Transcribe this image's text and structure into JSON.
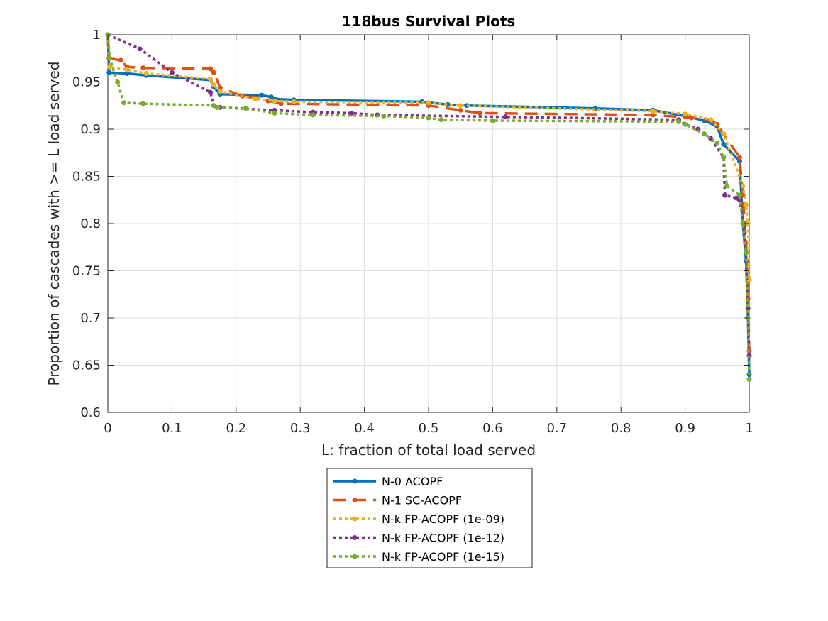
{
  "chart_data": {
    "type": "line",
    "title": "118bus Survival Plots",
    "xlabel": "L: fraction of total load served",
    "ylabel": "Proportion of cascades with >= L load served",
    "xlim": [
      0,
      1
    ],
    "ylim": [
      0.6,
      1
    ],
    "xticks": [
      "0",
      "0.1",
      "0.2",
      "0.3",
      "0.4",
      "0.5",
      "0.6",
      "0.7",
      "0.8",
      "0.9",
      "1"
    ],
    "yticks": [
      "0.6",
      "0.65",
      "0.7",
      "0.75",
      "0.8",
      "0.85",
      "0.9",
      "0.95",
      "1"
    ],
    "grid": true,
    "legend": "bottom-center (outside)",
    "series": [
      {
        "name": "N-0 ACOPF",
        "color": "#0072BD",
        "style": "solid",
        "x": [
          0,
          0.002,
          0.03,
          0.06,
          0.16,
          0.165,
          0.175,
          0.24,
          0.255,
          0.26,
          0.29,
          0.49,
          0.53,
          0.56,
          0.76,
          0.85,
          0.9,
          0.93,
          0.95,
          0.96,
          0.985,
          0.99,
          0.995,
          0.998,
          1.0
        ],
        "y": [
          1.0,
          0.96,
          0.959,
          0.957,
          0.952,
          0.945,
          0.937,
          0.936,
          0.934,
          0.932,
          0.931,
          0.929,
          0.926,
          0.925,
          0.922,
          0.92,
          0.914,
          0.909,
          0.903,
          0.884,
          0.866,
          0.8,
          0.76,
          0.7,
          0.64
        ]
      },
      {
        "name": "N-1 SC-ACOPF",
        "color": "#D95319",
        "style": "dashed",
        "x": [
          0,
          0.002,
          0.02,
          0.03,
          0.055,
          0.16,
          0.165,
          0.175,
          0.21,
          0.23,
          0.25,
          0.27,
          0.5,
          0.55,
          0.58,
          0.85,
          0.91,
          0.94,
          0.95,
          0.96,
          0.985,
          0.99,
          0.995,
          0.998,
          1.0
        ],
        "y": [
          1.0,
          0.975,
          0.973,
          0.966,
          0.965,
          0.964,
          0.96,
          0.944,
          0.935,
          0.933,
          0.93,
          0.927,
          0.925,
          0.92,
          0.917,
          0.915,
          0.912,
          0.91,
          0.905,
          0.895,
          0.87,
          0.83,
          0.78,
          0.72,
          0.665
        ]
      },
      {
        "name": "N-k FP-ACOPF (1e-09)",
        "color": "#EDB120",
        "style": "dotted",
        "x": [
          0,
          0.003,
          0.03,
          0.06,
          0.16,
          0.165,
          0.175,
          0.23,
          0.26,
          0.29,
          0.5,
          0.55,
          0.85,
          0.9,
          0.94,
          0.96,
          0.99,
          0.995,
          0.998,
          1.0
        ],
        "y": [
          1.0,
          0.966,
          0.963,
          0.959,
          0.953,
          0.947,
          0.94,
          0.932,
          0.93,
          0.929,
          0.928,
          0.925,
          0.919,
          0.916,
          0.91,
          0.895,
          0.84,
          0.82,
          0.8,
          0.74
        ]
      },
      {
        "name": "N-k FP-ACOPF (1e-12)",
        "color": "#7E2F8E",
        "style": "dotted",
        "x": [
          0,
          0.05,
          0.1,
          0.16,
          0.165,
          0.175,
          0.26,
          0.32,
          0.38,
          0.42,
          0.62,
          0.89,
          0.9,
          0.92,
          0.94,
          0.96,
          0.962,
          0.98,
          0.985,
          0.992,
          0.995,
          0.998,
          1.0
        ],
        "y": [
          1.0,
          0.985,
          0.96,
          0.939,
          0.925,
          0.923,
          0.92,
          0.918,
          0.917,
          0.915,
          0.913,
          0.91,
          0.905,
          0.9,
          0.89,
          0.87,
          0.83,
          0.827,
          0.825,
          0.8,
          0.77,
          0.71,
          0.66
        ]
      },
      {
        "name": "N-k FP-ACOPF (1e-15)",
        "color": "#77AC30",
        "style": "dotted",
        "x": [
          0,
          0.003,
          0.015,
          0.025,
          0.055,
          0.165,
          0.17,
          0.215,
          0.26,
          0.32,
          0.43,
          0.5,
          0.52,
          0.6,
          0.89,
          0.9,
          0.93,
          0.95,
          0.96,
          0.965,
          0.985,
          0.99,
          0.995,
          0.998,
          1.0
        ],
        "y": [
          1.0,
          0.975,
          0.95,
          0.928,
          0.927,
          0.925,
          0.923,
          0.922,
          0.917,
          0.915,
          0.914,
          0.912,
          0.91,
          0.909,
          0.908,
          0.905,
          0.895,
          0.885,
          0.87,
          0.84,
          0.83,
          0.8,
          0.77,
          0.7,
          0.635
        ]
      }
    ]
  }
}
